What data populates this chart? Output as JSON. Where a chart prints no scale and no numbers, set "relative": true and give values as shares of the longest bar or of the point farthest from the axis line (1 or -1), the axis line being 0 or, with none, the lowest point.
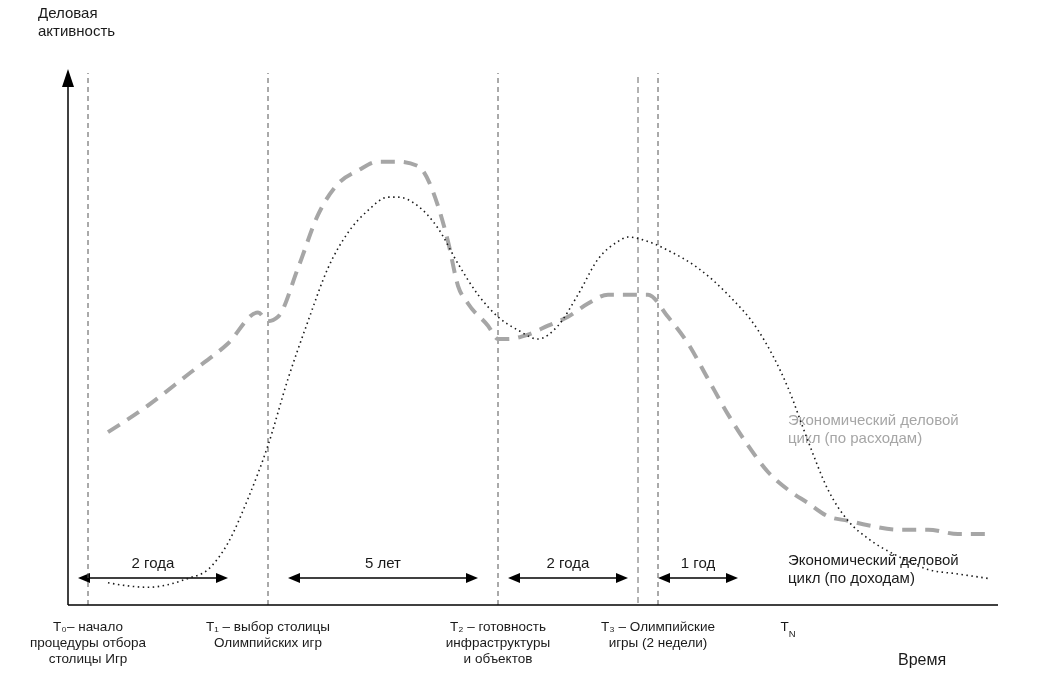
{
  "chart_data": {
    "type": "line",
    "relative": true,
    "xlabel": "Время",
    "marker": "none",
    "categories": [
      null,
      null,
      "T₀– начало\nпроцедуры отбора\nстолицы Игр",
      null,
      null,
      null,
      null,
      null,
      null,
      null,
      null,
      null,
      null,
      null,
      null,
      null,
      null,
      null,
      null,
      null,
      "T₁ – выбор столицы\nОлимпийских игр",
      null,
      null,
      null,
      null,
      null,
      null,
      null,
      null,
      null,
      null,
      null,
      null,
      null,
      null,
      null,
      null,
      null,
      null,
      null,
      null,
      null,
      null,
      "T₂ – готовность\nинфраструктуры\nи объектов",
      null,
      null,
      null,
      null,
      null,
      null,
      null,
      null,
      null,
      null,
      null,
      null,
      null,
      null,
      null,
      "T₃ – Олимпийские\nигры (2 недели)",
      null,
      null,
      null,
      null,
      null,
      null,
      null,
      null,
      null,
      null,
      null,
      null,
      "T$_{N}$",
      null,
      null,
      null,
      null,
      null,
      null,
      null,
      null,
      null,
      null,
      null,
      null,
      null,
      null,
      null,
      null,
      null,
      null,
      null,
      null,
      null
    ],
    "series": [
      {
        "name": "Экономический деловой\nцикл (по расходам)",
        "color": "#a6a6a6",
        "line_style": "dashed",
        "values": [
          null,
          null,
          null,
          null,
          0.39,
          null,
          null,
          null,
          0.45,
          null,
          null,
          null,
          0.52,
          null,
          null,
          null,
          0.59,
          null,
          null,
          0.66,
          0.64,
          0.65,
          null,
          0.76,
          null,
          0.88,
          null,
          0.95,
          null,
          0.98,
          null,
          1.0,
          null,
          1.0,
          null,
          0.99,
          null,
          0.9,
          0.82,
          0.72,
          0.68,
          null,
          0.63,
          0.6,
          0.6,
          null,
          0.61,
          null,
          0.63,
          null,
          0.65,
          null,
          0.68,
          null,
          0.7,
          null,
          0.7,
          null,
          0.7,
          null,
          0.65,
          null,
          0.59,
          null,
          0.51,
          null,
          0.43,
          null,
          0.36,
          null,
          0.3,
          null,
          0.26,
          null,
          0.23,
          null,
          0.2,
          null,
          0.19,
          null,
          0.18,
          null,
          null,
          0.17,
          null,
          null,
          0.17,
          null,
          null,
          0.16,
          null,
          null,
          0.16,
          null
        ]
      },
      {
        "name": "Экономический деловой\nцикл (по доходам)",
        "color": "#1a1a1a",
        "line_style": "dotted",
        "values": [
          null,
          null,
          null,
          null,
          0.05,
          null,
          null,
          null,
          0.04,
          null,
          null,
          null,
          0.06,
          null,
          0.08,
          null,
          0.14,
          null,
          0.24,
          null,
          0.36,
          null,
          0.51,
          null,
          0.64,
          null,
          0.76,
          null,
          0.84,
          null,
          0.89,
          null,
          0.92,
          0.92,
          null,
          0.9,
          null,
          0.85,
          null,
          0.77,
          null,
          0.7,
          null,
          0.65,
          null,
          0.62,
          null,
          0.6,
          null,
          0.63,
          null,
          0.7,
          null,
          0.78,
          null,
          0.82,
          0.83,
          null,
          0.82,
          null,
          0.8,
          null,
          null,
          0.76,
          null,
          null,
          0.7,
          null,
          null,
          0.62,
          null,
          null,
          0.49,
          null,
          0.37,
          null,
          0.26,
          null,
          0.19,
          null,
          0.15,
          null,
          null,
          0.11,
          null,
          null,
          0.08,
          null,
          null,
          0.07,
          null,
          null,
          0.06,
          null
        ]
      }
    ],
    "ref_lines": [
      {
        "axis": "x",
        "value": "T₀– начало\nпроцедуры отбора\nстолицы Игр",
        "line_style": "dashed",
        "color": "#555555"
      },
      {
        "axis": "x",
        "value": "T₁ – выбор столицы\nОлимпийских игр",
        "line_style": "dashed",
        "color": "#555555"
      },
      {
        "axis": "x",
        "value": "T₂ – готовность\nинфраструктуры\nи объектов",
        "line_style": "dashed",
        "color": "#555555"
      },
      {
        "axis": "x",
        "value": "T₃ – Олимпийские\nигры (2 недели)",
        "line_style": "dashed",
        "color": "#555555"
      }
    ],
    "annotations": [
      "Деловая\nактивность",
      "2 года",
      "5 лет",
      "2 года",
      "1 год"
    ]
  }
}
